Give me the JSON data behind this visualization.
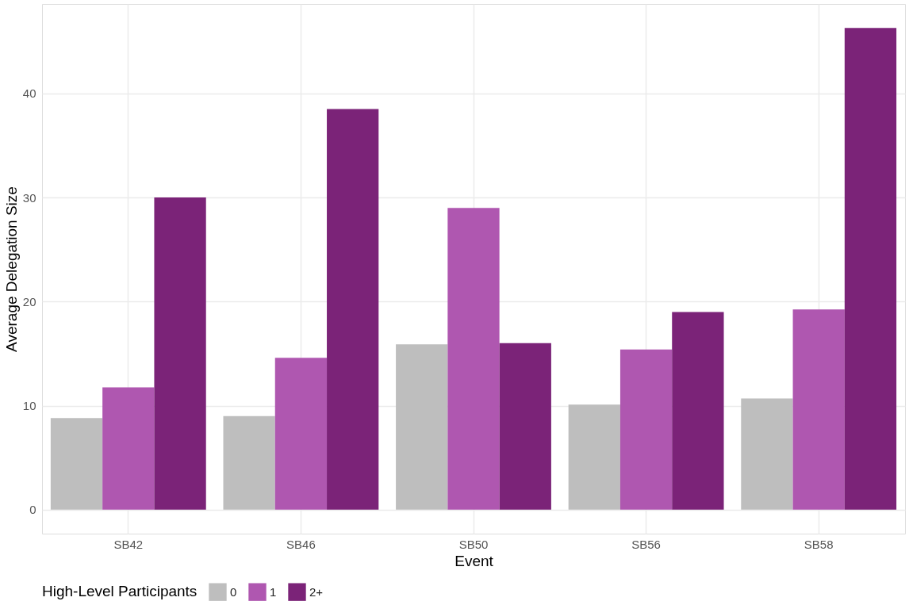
{
  "chart_data": {
    "type": "bar",
    "xlabel": "Event",
    "ylabel": "Average Delegation Size",
    "legend_title": "High-Level Participants",
    "categories": [
      "SB42",
      "SB46",
      "SB50",
      "SB56",
      "SB58"
    ],
    "series": [
      {
        "name": "0",
        "color": "#bebebe",
        "values": [
          8.8,
          9.0,
          15.9,
          10.1,
          10.7
        ]
      },
      {
        "name": "1",
        "color": "#af57b0",
        "values": [
          11.75,
          14.6,
          29.0,
          15.4,
          19.25
        ]
      },
      {
        "name": "2+",
        "color": "#7b2378",
        "values": [
          30.0,
          38.5,
          16.0,
          19.0,
          46.3
        ]
      }
    ],
    "ylim": [
      -2.3,
      48.6
    ],
    "yticks": [
      0,
      10,
      20,
      30,
      40
    ],
    "grid": true,
    "legend": "bottom"
  }
}
